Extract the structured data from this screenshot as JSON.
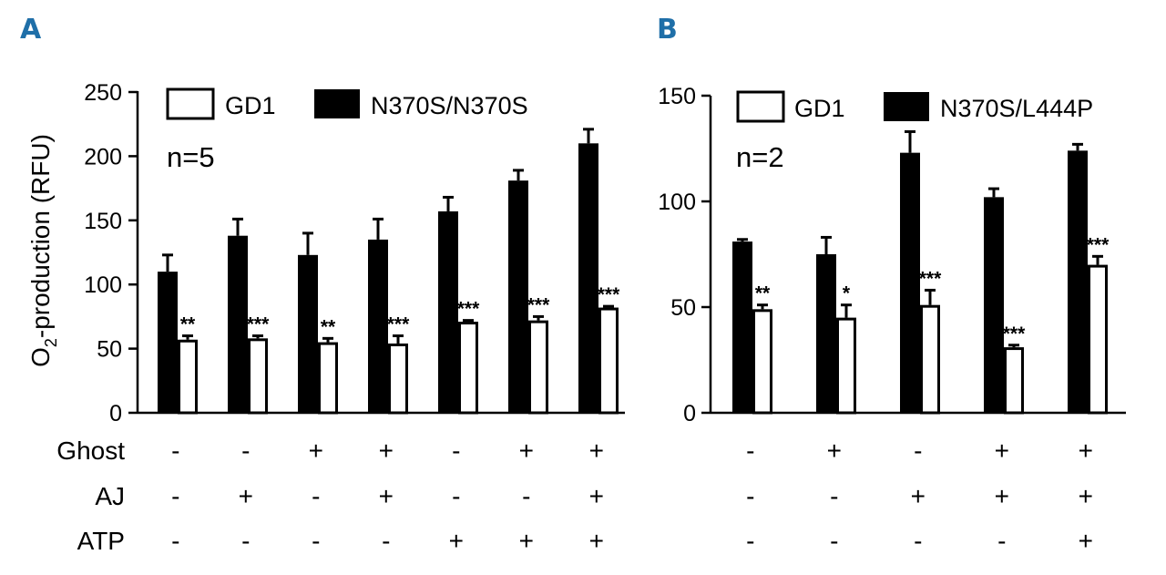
{
  "chart_data": [
    {
      "panel": "A",
      "type": "bar",
      "ylabel_main": "O",
      "ylabel_sub": "2",
      "ylabel_rest": "-production (RFU)",
      "ylim": [
        0,
        250
      ],
      "yticks": [
        "0",
        "50",
        "100",
        "150",
        "200",
        "250"
      ],
      "n_label": "n=5",
      "legend": [
        "GD1",
        "N370S/N370S"
      ],
      "series": [
        {
          "name": "N370S/N370S",
          "color": "#000000",
          "values": [
            110,
            138,
            123,
            135,
            157,
            181,
            210
          ],
          "errors": [
            13,
            13,
            17,
            16,
            11,
            8,
            11
          ]
        },
        {
          "name": "GD1",
          "color": "#ffffff",
          "values": [
            57,
            58,
            55,
            54,
            71,
            72,
            82
          ],
          "errors": [
            3,
            2,
            3,
            6,
            1,
            3,
            1
          ],
          "annotations": [
            "**",
            "***",
            "**",
            "***",
            "***",
            "***",
            "***"
          ]
        }
      ],
      "conditions": [
        {
          "label": "Ghost",
          "values": [
            "-",
            "-",
            "+",
            "+",
            "-",
            "+",
            "+"
          ]
        },
        {
          "label": "AJ",
          "values": [
            "-",
            "+",
            "-",
            "+",
            "-",
            "-",
            "+"
          ]
        },
        {
          "label": "ATP",
          "values": [
            "-",
            "-",
            "-",
            "-",
            "+",
            "+",
            "+"
          ]
        }
      ]
    },
    {
      "panel": "B",
      "type": "bar",
      "ylim": [
        0,
        150
      ],
      "yticks": [
        "0",
        "50",
        "100",
        "150"
      ],
      "n_label": "n=2",
      "legend": [
        "GD1",
        "N370S/L444P"
      ],
      "series": [
        {
          "name": "N370S/L444P",
          "color": "#000000",
          "values": [
            81,
            75,
            123,
            102,
            124
          ],
          "errors": [
            1,
            8,
            10,
            4,
            3
          ]
        },
        {
          "name": "GD1",
          "color": "#ffffff",
          "values": [
            49,
            45,
            51,
            31,
            70
          ],
          "errors": [
            2,
            6,
            7,
            1,
            4
          ],
          "annotations": [
            "**",
            "*",
            "***",
            "***",
            "***"
          ]
        }
      ],
      "conditions": [
        {
          "label": "",
          "values": [
            "-",
            "+",
            "-",
            "+",
            "+"
          ]
        },
        {
          "label": "",
          "values": [
            "-",
            "-",
            "+",
            "+",
            "+"
          ]
        },
        {
          "label": "",
          "values": [
            "-",
            "-",
            "-",
            "-",
            "+"
          ]
        }
      ]
    }
  ]
}
